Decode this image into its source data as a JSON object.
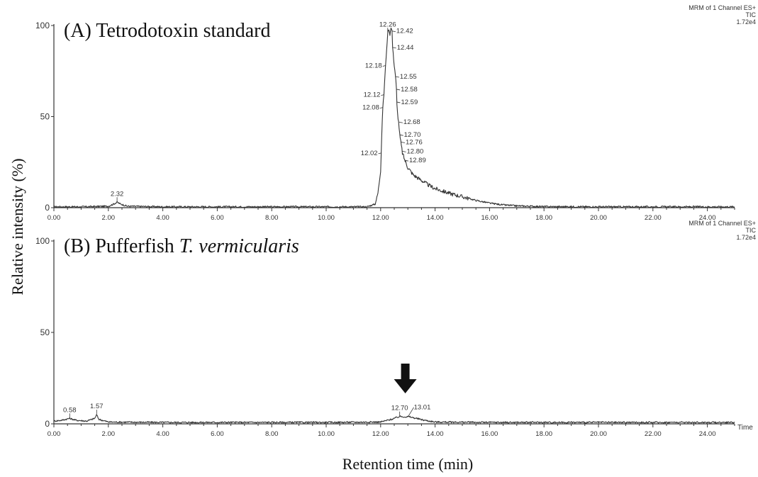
{
  "figure": {
    "ylabel": "Relative intensity (%)",
    "xlabel": "Retention time (min)"
  },
  "chart_data": [
    {
      "type": "line",
      "title": "(A) Tetrodotoxin standard",
      "title_italic": "",
      "header_lines": [
        "MRM of 1 Channel ES+",
        "TIC",
        "1.72e4"
      ],
      "x_label_suffix": "",
      "xlim": [
        0,
        25
      ],
      "ylim": [
        0,
        100
      ],
      "x_ticks": [
        "0.00",
        "2.00",
        "4.00",
        "6.00",
        "8.00",
        "10.00",
        "12.00",
        "14.00",
        "16.00",
        "18.00",
        "20.00",
        "22.00",
        "24.00"
      ],
      "y_ticks": [
        "0",
        "50",
        "100"
      ],
      "series": [
        {
          "x": [
            0.0,
            1.0,
            2.0,
            2.2,
            2.32,
            2.45,
            2.7,
            4.0,
            6.0,
            8.0,
            10.0,
            11.5,
            11.8,
            11.9,
            12.0,
            12.02,
            12.06,
            12.08,
            12.12,
            12.15,
            12.18,
            12.22,
            12.26,
            12.3,
            12.34,
            12.38,
            12.42,
            12.44,
            12.5,
            12.55,
            12.58,
            12.59,
            12.62,
            12.66,
            12.68,
            12.7,
            12.76,
            12.8,
            12.89,
            13.0,
            13.2,
            13.5,
            13.8,
            14.0,
            14.5,
            15.0,
            15.5,
            16.0,
            16.5,
            17.0,
            18.0,
            20.0,
            22.0,
            24.0,
            25.0
          ],
          "y": [
            0.5,
            0.5,
            0.8,
            2.0,
            3.0,
            2.0,
            0.8,
            0.5,
            0.5,
            0.5,
            0.5,
            0.5,
            2.0,
            8.0,
            20.0,
            30.0,
            48.0,
            55.0,
            62.0,
            70.0,
            78.0,
            86.0,
            96.0,
            98.0,
            95.0,
            99.0,
            97.0,
            88.0,
            78.0,
            72.0,
            65.0,
            58.0,
            52.0,
            47.0,
            44.0,
            40.0,
            34.0,
            30.0,
            26.0,
            22.0,
            18.0,
            15.0,
            12.0,
            10.5,
            8.0,
            6.0,
            4.0,
            2.5,
            1.5,
            1.0,
            0.6,
            0.5,
            0.5,
            0.5,
            0.5
          ]
        }
      ],
      "annotations": [
        {
          "text": "2.32",
          "x": 2.32,
          "y": 3.0,
          "side": "top"
        },
        {
          "text": "12.02",
          "x": 12.02,
          "y": 30.0,
          "side": "left"
        },
        {
          "text": "12.08",
          "x": 12.08,
          "y": 55.0,
          "side": "left"
        },
        {
          "text": "12.12",
          "x": 12.12,
          "y": 62.0,
          "side": "left"
        },
        {
          "text": "12.18",
          "x": 12.18,
          "y": 78.0,
          "side": "left"
        },
        {
          "text": "12.26",
          "x": 12.26,
          "y": 96.0,
          "side": "top"
        },
        {
          "text": "12.42",
          "x": 12.42,
          "y": 97.0,
          "side": "right"
        },
        {
          "text": "12.44",
          "x": 12.44,
          "y": 88.0,
          "side": "right"
        },
        {
          "text": "12.55",
          "x": 12.55,
          "y": 72.0,
          "side": "right"
        },
        {
          "text": "12.58",
          "x": 12.58,
          "y": 65.0,
          "side": "right"
        },
        {
          "text": "12.59",
          "x": 12.59,
          "y": 58.0,
          "side": "right"
        },
        {
          "text": "12.68",
          "x": 12.68,
          "y": 47.0,
          "side": "right"
        },
        {
          "text": "12.70",
          "x": 12.7,
          "y": 40.0,
          "side": "right"
        },
        {
          "text": "12.76",
          "x": 12.76,
          "y": 36.0,
          "side": "right"
        },
        {
          "text": "12.80",
          "x": 12.8,
          "y": 31.0,
          "side": "right"
        },
        {
          "text": "12.89",
          "x": 12.89,
          "y": 26.0,
          "side": "right"
        }
      ],
      "arrow_x": null
    },
    {
      "type": "line",
      "title": "(B) Pufferfish ",
      "title_italic": "T. vermicularis",
      "header_lines": [
        "MRM of 1 Channel ES+",
        "TIC",
        "1.72e4"
      ],
      "x_label_suffix": "Time",
      "xlim": [
        0,
        25
      ],
      "ylim": [
        0,
        100
      ],
      "x_ticks": [
        "0.00",
        "2.00",
        "4.00",
        "6.00",
        "8.00",
        "10.00",
        "12.00",
        "14.00",
        "16.00",
        "18.00",
        "20.00",
        "22.00",
        "24.00"
      ],
      "y_ticks": [
        "0",
        "50",
        "100"
      ],
      "series": [
        {
          "x": [
            0.0,
            0.3,
            0.58,
            0.8,
            1.2,
            1.5,
            1.57,
            1.65,
            2.0,
            4.0,
            6.0,
            8.0,
            10.0,
            12.0,
            12.4,
            12.7,
            13.0,
            13.01,
            13.3,
            13.6,
            14.0,
            16.0,
            18.0,
            20.0,
            22.0,
            24.0,
            25.0
          ],
          "y": [
            1.5,
            2.0,
            3.0,
            2.0,
            1.5,
            3.0,
            5.0,
            2.5,
            1.0,
            0.8,
            0.8,
            0.8,
            0.8,
            1.0,
            2.5,
            4.0,
            3.8,
            4.0,
            3.0,
            2.0,
            1.0,
            0.8,
            0.8,
            0.8,
            0.8,
            0.8,
            0.8
          ]
        }
      ],
      "annotations": [
        {
          "text": "0.58",
          "x": 0.58,
          "y": 3.0,
          "side": "top"
        },
        {
          "text": "1.57",
          "x": 1.57,
          "y": 5.0,
          "side": "top"
        },
        {
          "text": "12.70",
          "x": 12.7,
          "y": 4.0,
          "side": "top"
        },
        {
          "text": "13.01",
          "x": 13.01,
          "y": 4.0,
          "side": "topright"
        }
      ],
      "arrow_x": 13.01
    }
  ]
}
